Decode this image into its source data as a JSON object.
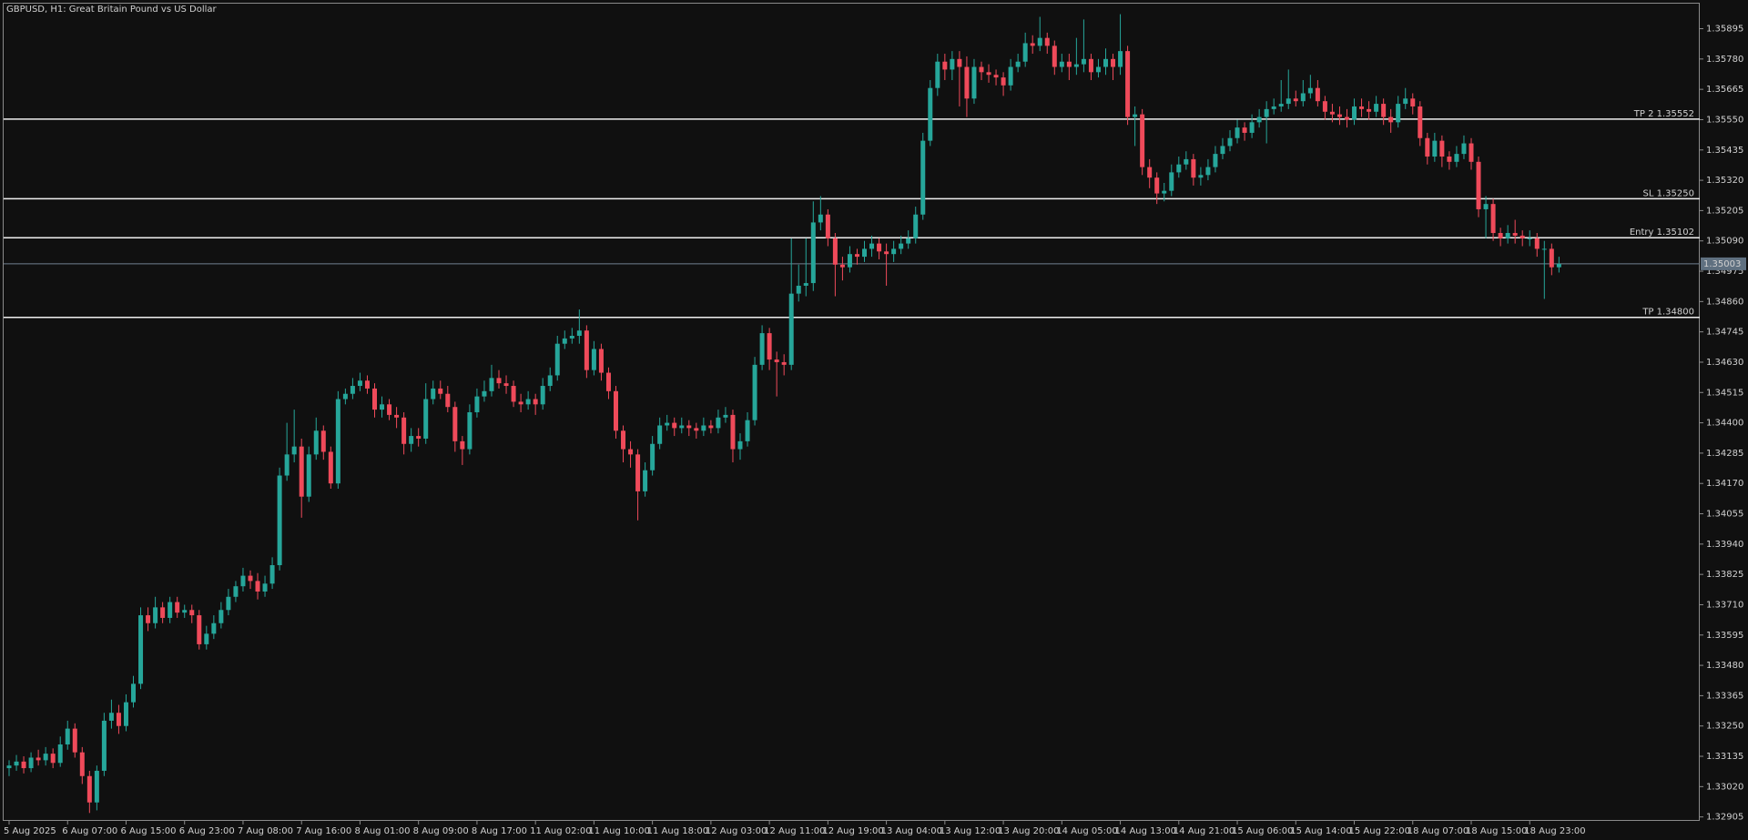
{
  "chart_data": {
    "type": "candlestick",
    "title": "GBPUSD, H1:  Great Britain Pound vs US Dollar",
    "colors": {
      "up": "#26a69a",
      "down": "#ef4a5a"
    },
    "categories": [
      "5 Aug 2025",
      null,
      null,
      null,
      null,
      null,
      null,
      null,
      "6 Aug 07:00",
      null,
      null,
      null,
      null,
      null,
      null,
      null,
      "6 Aug 15:00",
      null,
      null,
      null,
      null,
      null,
      null,
      null,
      "6 Aug 23:00",
      null,
      null,
      null,
      null,
      null,
      null,
      null,
      "7 Aug 08:00",
      null,
      null,
      null,
      null,
      null,
      null,
      null,
      "7 Aug 16:00",
      null,
      null,
      null,
      null,
      null,
      null,
      null,
      "8 Aug 01:00",
      null,
      null,
      null,
      null,
      null,
      null,
      null,
      "8 Aug 09:00",
      null,
      null,
      null,
      null,
      null,
      null,
      null,
      "8 Aug 17:00",
      null,
      null,
      null,
      null,
      null,
      null,
      null,
      "11 Aug 02:00",
      null,
      null,
      null,
      null,
      null,
      null,
      null,
      "11 Aug 10:00",
      null,
      null,
      null,
      null,
      null,
      null,
      null,
      "11 Aug 18:00",
      null,
      null,
      null,
      null,
      null,
      null,
      null,
      "12 Aug 03:00",
      null,
      null,
      null,
      null,
      null,
      null,
      null,
      "12 Aug 11:00",
      null,
      null,
      null,
      null,
      null,
      null,
      null,
      "12 Aug 19:00",
      null,
      null,
      null,
      null,
      null,
      null,
      null,
      "13 Aug 04:00",
      null,
      null,
      null,
      null,
      null,
      null,
      null,
      "13 Aug 12:00",
      null,
      null,
      null,
      null,
      null,
      null,
      null,
      "13 Aug 20:00",
      null,
      null,
      null,
      null,
      null,
      null,
      null,
      "14 Aug 05:00",
      null,
      null,
      null,
      null,
      null,
      null,
      null,
      "14 Aug 13:00",
      null,
      null,
      null,
      null,
      null,
      null,
      null,
      "14 Aug 21:00",
      null,
      null,
      null,
      null,
      null,
      null,
      null,
      "15 Aug 06:00",
      null,
      null,
      null,
      null,
      null,
      null,
      null,
      "15 Aug 14:00",
      null,
      null,
      null,
      null,
      null,
      null,
      null,
      "15 Aug 22:00",
      null,
      null,
      null,
      null,
      null,
      null,
      null,
      "18 Aug 07:00",
      null,
      null,
      null,
      null,
      null,
      null,
      null,
      "18 Aug 15:00",
      null,
      null,
      null,
      null,
      null,
      null,
      null,
      "18 Aug 23:00",
      null,
      null,
      null,
      null
    ],
    "open": [
      1.3309,
      1.331,
      1.33115,
      1.3309,
      1.3313,
      1.3312,
      1.33145,
      1.3311,
      1.3318,
      1.3324,
      1.3315,
      1.3306,
      1.3296,
      1.3308,
      1.3327,
      1.333,
      1.3325,
      1.3334,
      1.3341,
      1.3367,
      1.3364,
      1.337,
      1.3366,
      1.3372,
      1.3368,
      1.3369,
      1.3367,
      1.3356,
      1.336,
      1.3364,
      1.3369,
      1.3374,
      1.3378,
      1.3382,
      1.338,
      1.3376,
      1.3379,
      1.3386,
      1.342,
      1.3428,
      1.3431,
      1.3412,
      1.3428,
      1.3437,
      1.3429,
      1.3417,
      1.3449,
      1.3451,
      1.3454,
      1.3456,
      1.3453,
      1.3445,
      1.3447,
      1.3443,
      1.3442,
      1.3432,
      1.3435,
      1.3434,
      1.3449,
      1.3453,
      1.3451,
      1.3446,
      1.3433,
      1.343,
      1.3444,
      1.345,
      1.3452,
      1.3457,
      1.3455,
      1.3454,
      1.3448,
      1.3447,
      1.3449,
      1.3447,
      1.3454,
      1.3458,
      1.347,
      1.3472,
      1.3473,
      1.3475,
      1.346,
      1.3468,
      1.3459,
      1.3452,
      1.3437,
      1.343,
      1.3428,
      1.3414,
      1.3422,
      1.3432,
      1.3439,
      1.344,
      1.3438,
      1.3439,
      1.3438,
      1.3437,
      1.3439,
      1.3438,
      1.3442,
      1.3443,
      1.343,
      1.3433,
      1.3441,
      1.3462,
      1.3474,
      1.3464,
      1.3463,
      1.3462,
      1.3489,
      1.3492,
      1.3493,
      1.3516,
      1.3519,
      1.351,
      1.35,
      1.3499,
      1.3504,
      1.3503,
      1.3506,
      1.3508,
      1.3505,
      1.3504,
      1.3506,
      1.3508,
      1.351,
      1.3519,
      1.3547,
      1.3567,
      1.3577,
      1.3574,
      1.3578,
      1.3575,
      1.3563,
      1.3575,
      1.3573,
      1.3572,
      1.3571,
      1.3568,
      1.3575,
      1.3577,
      1.3584,
      1.3583,
      1.3586,
      1.3583,
      1.3575,
      1.3577,
      1.3575,
      1.3576,
      1.3578,
      1.3573,
      1.3575,
      1.3578,
      1.3575,
      1.3581,
      1.3556,
      1.3557,
      1.3537,
      1.3533,
      1.3527,
      1.3528,
      1.3535,
      1.3538,
      1.354,
      1.3533,
      1.3534,
      1.3537,
      1.3542,
      1.3545,
      1.3548,
      1.3552,
      1.355,
      1.3554,
      1.3556,
      1.3559,
      1.356,
      1.3561,
      1.3563,
      1.3562,
      1.3565,
      1.3567,
      1.3562,
      1.3558,
      1.3557,
      1.3556,
      1.3555,
      1.356,
      1.3559,
      1.3558,
      1.3561,
      1.3556,
      1.3554,
      1.3561,
      1.3563,
      1.356,
      1.3548,
      1.3541,
      1.3547,
      1.3541,
      1.3539,
      1.3542,
      1.3546,
      1.3539,
      1.3521,
      1.3523,
      1.3512,
      1.351,
      1.3512,
      1.3511,
      1.351,
      1.351,
      1.3506,
      1.3506,
      1.3499
    ],
    "high": [
      1.3312,
      1.3314,
      1.33135,
      1.3315,
      1.3316,
      1.3317,
      1.33165,
      1.3321,
      1.3327,
      1.3326,
      1.3317,
      1.3308,
      1.331,
      1.333,
      1.3335,
      1.3333,
      1.3337,
      1.3344,
      1.337,
      1.337,
      1.3374,
      1.3372,
      1.3374,
      1.3374,
      1.3371,
      1.3371,
      1.3369,
      1.3363,
      1.3367,
      1.3372,
      1.3377,
      1.338,
      1.3385,
      1.3384,
      1.3383,
      1.3382,
      1.3389,
      1.3423,
      1.344,
      1.3445,
      1.3434,
      1.3431,
      1.3442,
      1.3439,
      1.3431,
      1.3452,
      1.3453,
      1.3457,
      1.3459,
      1.3458,
      1.3455,
      1.345,
      1.3449,
      1.3446,
      1.3444,
      1.3438,
      1.3438,
      1.3455,
      1.3456,
      1.3456,
      1.3454,
      1.3448,
      1.3435,
      1.3447,
      1.3453,
      1.3456,
      1.3462,
      1.346,
      1.3458,
      1.3456,
      1.3451,
      1.3452,
      1.3451,
      1.3457,
      1.3461,
      1.3473,
      1.3475,
      1.3476,
      1.3483,
      1.3477,
      1.3471,
      1.347,
      1.3461,
      1.3454,
      1.3439,
      1.3433,
      1.343,
      1.3425,
      1.3435,
      1.3442,
      1.3443,
      1.3442,
      1.3442,
      1.3441,
      1.344,
      1.3442,
      1.3441,
      1.3445,
      1.3446,
      1.3445,
      1.3436,
      1.3444,
      1.3465,
      1.3477,
      1.3476,
      1.3467,
      1.3466,
      1.351,
      1.35,
      1.351,
      1.3524,
      1.3526,
      1.3521,
      1.3512,
      1.3503,
      1.3507,
      1.3506,
      1.3509,
      1.3511,
      1.351,
      1.3508,
      1.3509,
      1.3511,
      1.3513,
      1.3522,
      1.355,
      1.357,
      1.358,
      1.358,
      1.3581,
      1.3581,
      1.3579,
      1.3578,
      1.3577,
      1.3576,
      1.3574,
      1.3573,
      1.3578,
      1.358,
      1.3588,
      1.3587,
      1.3594,
      1.3588,
      1.3585,
      1.358,
      1.358,
      1.3586,
      1.3593,
      1.358,
      1.3578,
      1.3582,
      1.358,
      1.3595,
      1.3583,
      1.356,
      1.3559,
      1.354,
      1.3535,
      1.3531,
      1.3538,
      1.3541,
      1.3543,
      1.3542,
      1.3537,
      1.354,
      1.3545,
      1.3548,
      1.3551,
      1.3555,
      1.3554,
      1.3557,
      1.3559,
      1.3562,
      1.3563,
      1.357,
      1.3574,
      1.3566,
      1.357,
      1.3572,
      1.357,
      1.3564,
      1.3561,
      1.356,
      1.3559,
      1.3563,
      1.3563,
      1.3562,
      1.3564,
      1.3563,
      1.3559,
      1.3564,
      1.3567,
      1.3565,
      1.3562,
      1.355,
      1.355,
      1.3549,
      1.3543,
      1.3545,
      1.3549,
      1.3548,
      1.3541,
      1.3526,
      1.3525,
      1.3514,
      1.3515,
      1.3517,
      1.3513,
      1.3513,
      1.3512,
      1.3509,
      1.3508,
      1.3503
    ],
    "low": [
      1.3306,
      1.3308,
      1.3307,
      1.33075,
      1.331,
      1.331,
      1.3309,
      1.33095,
      1.3316,
      1.3313,
      1.3303,
      1.3292,
      1.3293,
      1.3306,
      1.3324,
      1.3322,
      1.3323,
      1.3332,
      1.3339,
      1.3361,
      1.3362,
      1.3364,
      1.3364,
      1.3366,
      1.3366,
      1.3364,
      1.3354,
      1.3354,
      1.3358,
      1.3362,
      1.3367,
      1.3372,
      1.3376,
      1.3377,
      1.3373,
      1.3374,
      1.3377,
      1.3384,
      1.3418,
      1.3425,
      1.3404,
      1.341,
      1.3426,
      1.3426,
      1.3415,
      1.3415,
      1.3447,
      1.3449,
      1.3452,
      1.3451,
      1.3442,
      1.3442,
      1.3441,
      1.3438,
      1.3428,
      1.3429,
      1.3431,
      1.3432,
      1.3447,
      1.3449,
      1.3444,
      1.3429,
      1.3424,
      1.3428,
      1.3442,
      1.3448,
      1.345,
      1.3453,
      1.3451,
      1.3446,
      1.3444,
      1.3445,
      1.3443,
      1.3445,
      1.3452,
      1.3456,
      1.3468,
      1.347,
      1.347,
      1.3457,
      1.3458,
      1.3456,
      1.3449,
      1.3434,
      1.3425,
      1.3423,
      1.3403,
      1.3412,
      1.342,
      1.343,
      1.3437,
      1.3435,
      1.3436,
      1.3435,
      1.3434,
      1.3435,
      1.3436,
      1.3436,
      1.344,
      1.3425,
      1.3426,
      1.3431,
      1.3439,
      1.346,
      1.346,
      1.345,
      1.3458,
      1.346,
      1.3486,
      1.3488,
      1.349,
      1.3513,
      1.3507,
      1.3488,
      1.3494,
      1.3497,
      1.35,
      1.3501,
      1.3503,
      1.3502,
      1.3492,
      1.3501,
      1.3504,
      1.3506,
      1.3508,
      1.3517,
      1.3545,
      1.3564,
      1.357,
      1.357,
      1.356,
      1.3556,
      1.3561,
      1.357,
      1.3569,
      1.3568,
      1.3564,
      1.3566,
      1.3573,
      1.3575,
      1.358,
      1.3581,
      1.358,
      1.3572,
      1.3573,
      1.357,
      1.3572,
      1.3573,
      1.357,
      1.3571,
      1.3572,
      1.357,
      1.3572,
      1.3553,
      1.3545,
      1.3534,
      1.3529,
      1.3523,
      1.3524,
      1.3526,
      1.3533,
      1.3536,
      1.353,
      1.353,
      1.3532,
      1.3535,
      1.354,
      1.3543,
      1.3546,
      1.3547,
      1.3548,
      1.3552,
      1.3546,
      1.3557,
      1.3558,
      1.3559,
      1.356,
      1.356,
      1.3563,
      1.356,
      1.3555,
      1.3554,
      1.3553,
      1.3552,
      1.3553,
      1.3556,
      1.3555,
      1.3556,
      1.3553,
      1.355,
      1.3552,
      1.3559,
      1.3557,
      1.3545,
      1.3538,
      1.3539,
      1.3537,
      1.3536,
      1.3537,
      1.354,
      1.3536,
      1.3518,
      1.351,
      1.3509,
      1.3507,
      1.3508,
      1.3508,
      1.3507,
      1.3507,
      1.3503,
      1.3487,
      1.3496,
      1.3497
    ],
    "close": [
      1.331,
      1.33115,
      1.3309,
      1.3313,
      1.3312,
      1.33145,
      1.3311,
      1.3318,
      1.3324,
      1.3315,
      1.3306,
      1.3296,
      1.3308,
      1.3327,
      1.333,
      1.3325,
      1.3334,
      1.3341,
      1.3367,
      1.3364,
      1.337,
      1.3366,
      1.3372,
      1.3368,
      1.3369,
      1.3367,
      1.3356,
      1.336,
      1.3364,
      1.3369,
      1.3374,
      1.3378,
      1.3382,
      1.338,
      1.3376,
      1.3379,
      1.3386,
      1.342,
      1.3428,
      1.3431,
      1.3412,
      1.3428,
      1.3437,
      1.3429,
      1.3417,
      1.3449,
      1.3451,
      1.3454,
      1.3456,
      1.3453,
      1.3445,
      1.3447,
      1.3443,
      1.3442,
      1.3432,
      1.3435,
      1.3434,
      1.3449,
      1.3453,
      1.3451,
      1.3446,
      1.3433,
      1.343,
      1.3444,
      1.345,
      1.3452,
      1.3457,
      1.3455,
      1.3454,
      1.3448,
      1.3447,
      1.3449,
      1.3447,
      1.3454,
      1.3458,
      1.347,
      1.3472,
      1.3473,
      1.3475,
      1.346,
      1.3468,
      1.3459,
      1.3452,
      1.3437,
      1.343,
      1.3428,
      1.3414,
      1.3422,
      1.3432,
      1.3439,
      1.344,
      1.3438,
      1.3439,
      1.3438,
      1.3437,
      1.3439,
      1.3438,
      1.3442,
      1.3443,
      1.343,
      1.3433,
      1.3441,
      1.3462,
      1.3474,
      1.3464,
      1.3463,
      1.3462,
      1.3489,
      1.3492,
      1.3493,
      1.3516,
      1.3519,
      1.351,
      1.35,
      1.3499,
      1.3504,
      1.3503,
      1.3506,
      1.3508,
      1.3505,
      1.3504,
      1.3506,
      1.3508,
      1.351,
      1.3519,
      1.3547,
      1.3567,
      1.3577,
      1.3574,
      1.3578,
      1.3575,
      1.3563,
      1.3575,
      1.3573,
      1.3572,
      1.3571,
      1.3568,
      1.3575,
      1.3577,
      1.3584,
      1.3583,
      1.3586,
      1.3583,
      1.3575,
      1.3577,
      1.3575,
      1.3576,
      1.3578,
      1.3573,
      1.3575,
      1.3578,
      1.3575,
      1.3581,
      1.3556,
      1.3557,
      1.3537,
      1.3533,
      1.3527,
      1.3528,
      1.3535,
      1.3538,
      1.354,
      1.3533,
      1.3534,
      1.3537,
      1.3542,
      1.3545,
      1.3548,
      1.3552,
      1.355,
      1.3554,
      1.3556,
      1.3559,
      1.356,
      1.3561,
      1.3563,
      1.3562,
      1.3565,
      1.3567,
      1.3562,
      1.3558,
      1.3557,
      1.3556,
      1.3555,
      1.356,
      1.3559,
      1.3558,
      1.3561,
      1.3556,
      1.3554,
      1.3561,
      1.3563,
      1.356,
      1.3548,
      1.3541,
      1.3547,
      1.3541,
      1.3539,
      1.3542,
      1.3546,
      1.3539,
      1.3521,
      1.3523,
      1.3512,
      1.351,
      1.3512,
      1.3511,
      1.351,
      1.351,
      1.3506,
      1.3506,
      1.3499,
      1.35003
    ],
    "ylim": [
      1.3289,
      1.3599
    ],
    "yticks": [
      1.35895,
      {
        "value": 1.3578,
        "label": "1.35780"
      },
      1.35665,
      {
        "value": 1.3555,
        "label": "1.35550"
      },
      1.35435,
      {
        "value": 1.3532,
        "label": "1.35320"
      },
      1.35205,
      {
        "value": 1.3509,
        "label": "1.35090"
      },
      1.34975,
      {
        "value": 1.3486,
        "label": "1.34860"
      },
      1.34745,
      {
        "value": 1.3463,
        "label": "1.34630"
      },
      1.34515,
      {
        "value": 1.344,
        "label": "1.34400"
      },
      1.34285,
      {
        "value": 1.3417,
        "label": "1.34170"
      },
      1.34055,
      {
        "value": 1.3394,
        "label": "1.33940"
      },
      1.33825,
      {
        "value": 1.3371,
        "label": "1.33710"
      },
      1.33595,
      {
        "value": 1.3348,
        "label": "1.33480"
      },
      1.33365,
      {
        "value": 1.3325,
        "label": "1.33250"
      },
      1.33135,
      {
        "value": 1.3302,
        "label": "1.33020"
      },
      1.32905
    ],
    "levels": [
      {
        "label": "TP 2 1.35552",
        "value": 1.35552
      },
      {
        "label": "SL 1.35250",
        "value": 1.3525
      },
      {
        "label": "Entry 1.35102",
        "value": 1.35102
      },
      {
        "label": "TP 1.34800",
        "value": 1.348
      }
    ],
    "current_price": 1.35003
  }
}
